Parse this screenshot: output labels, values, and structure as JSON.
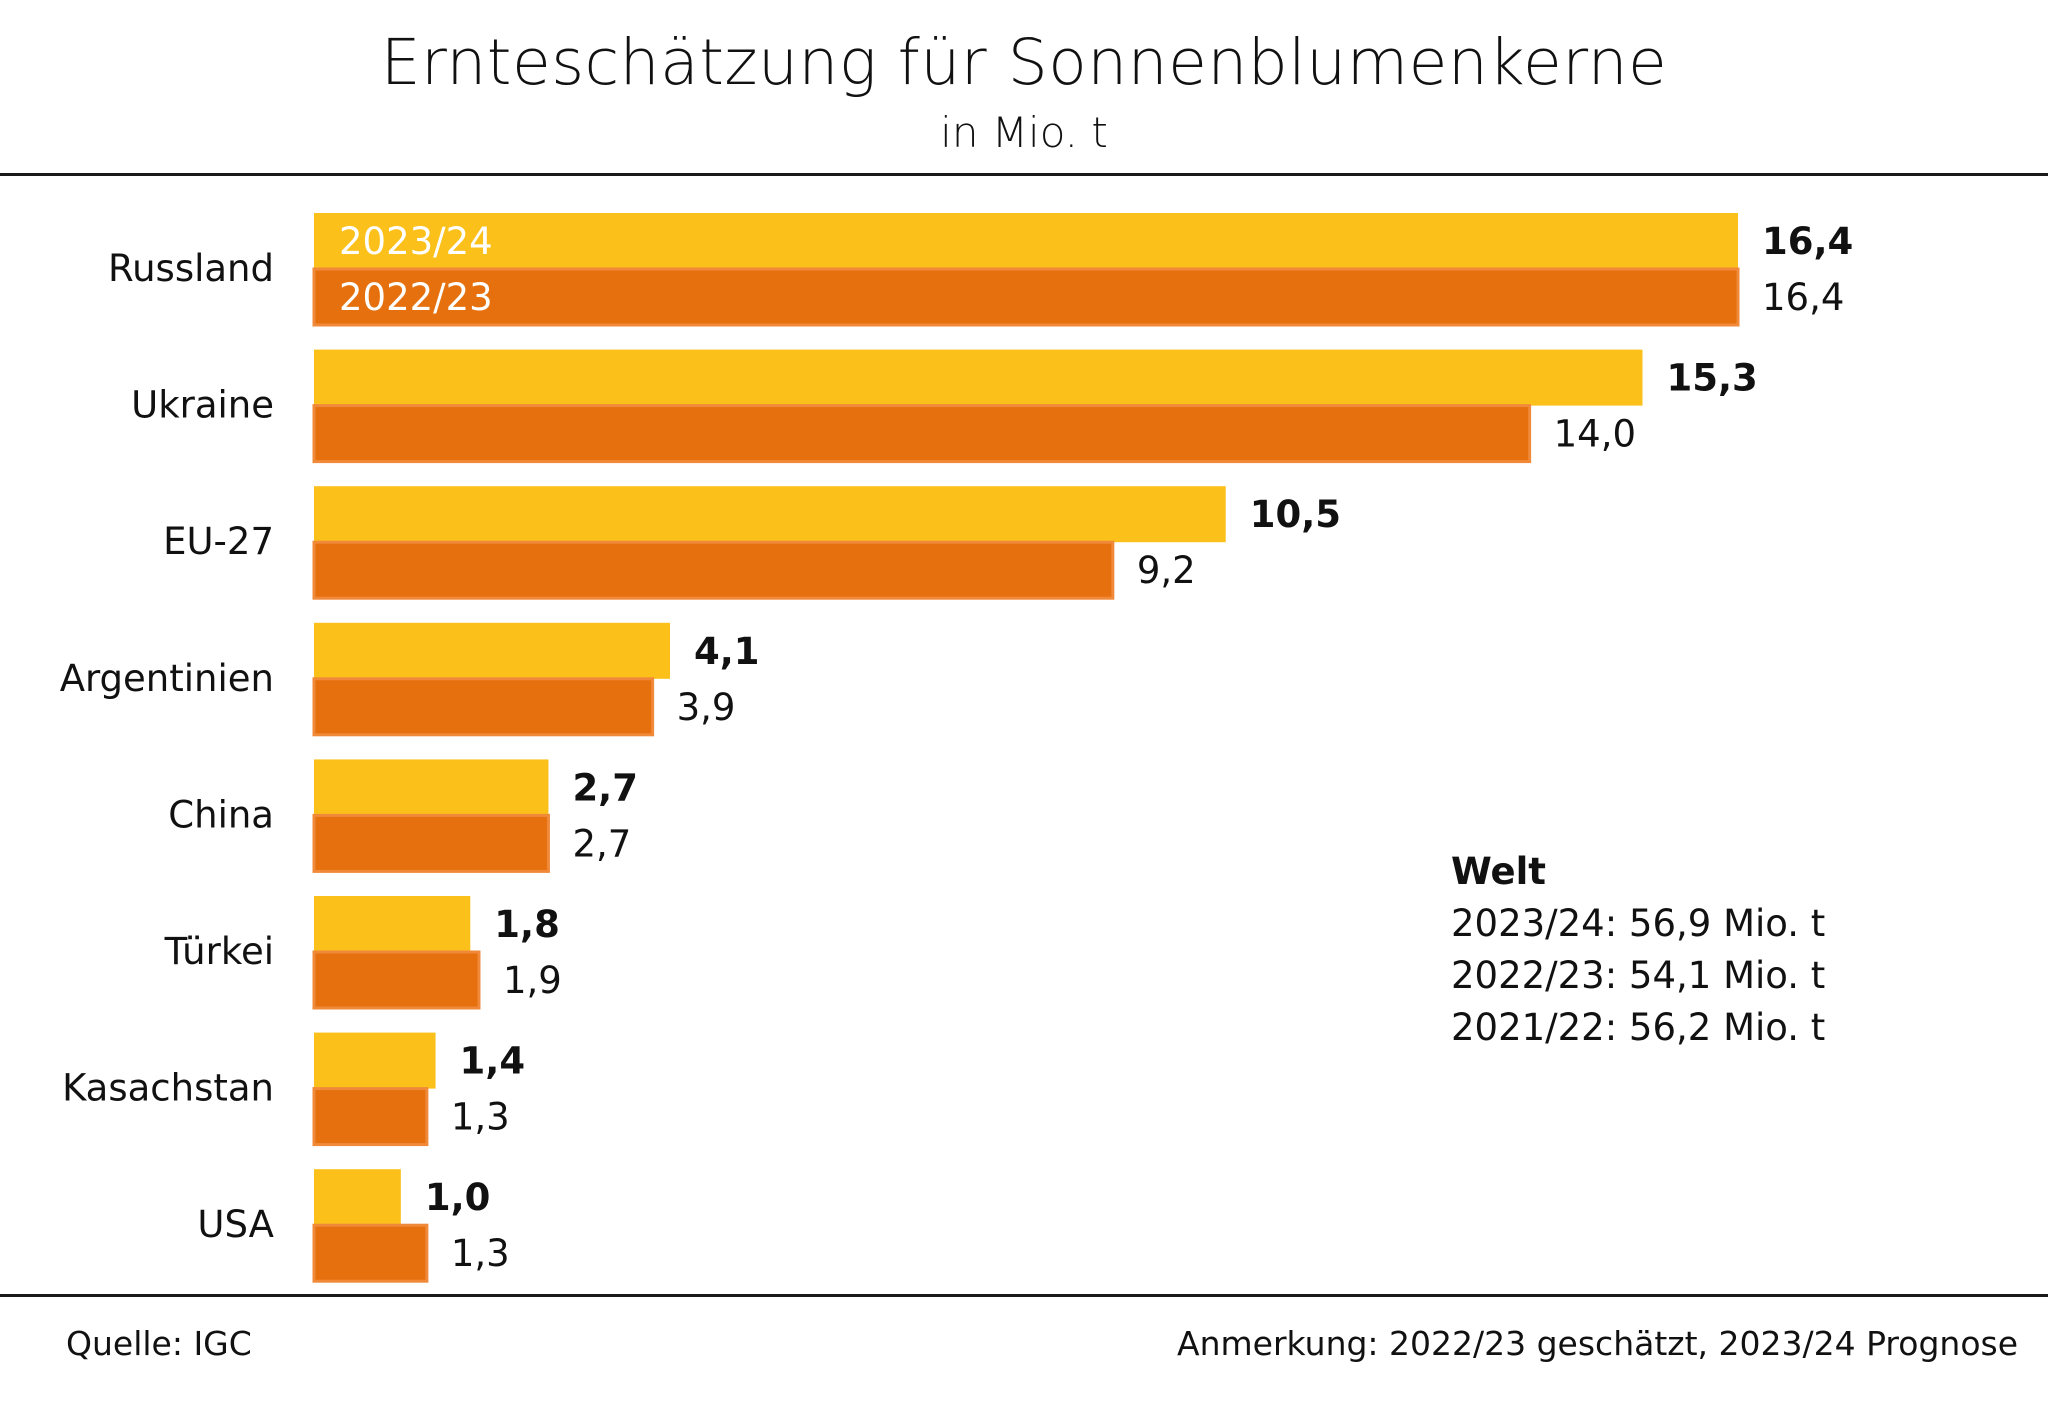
{
  "chart_data": {
    "type": "bar",
    "orientation": "horizontal",
    "title": "Ernteschätzung für Sonnenblumenkerne",
    "subtitle": "in Mio. t",
    "categories": [
      "Russland",
      "Ukraine",
      "EU-27",
      "Argentinien",
      "China",
      "Türkei",
      "Kasachstan",
      "USA"
    ],
    "series": [
      {
        "name": "2023/24",
        "color": "#FBC01A",
        "values": [
          16.4,
          15.3,
          10.5,
          4.1,
          2.7,
          1.8,
          1.4,
          1.0
        ],
        "labels": [
          "16,4",
          "15,3",
          "10,5",
          "4,1",
          "2,7",
          "1,8",
          "1,4",
          "1,0"
        ]
      },
      {
        "name": "2022/23",
        "color": "#E5700D",
        "values": [
          16.4,
          14.0,
          9.2,
          3.9,
          2.7,
          1.9,
          1.3,
          1.3
        ],
        "labels": [
          "16,4",
          "14,0",
          "9,2",
          "3,9",
          "2,7",
          "1,9",
          "1,3",
          "1,3"
        ]
      }
    ],
    "xlim": [
      0,
      16.4
    ],
    "grid": false,
    "legend": "inside-first-bars"
  },
  "world": {
    "title": "Welt",
    "lines": [
      "2023/24: 56,9 Mio. t",
      "2022/23: 54,1 Mio. t",
      "2021/22: 56,2 Mio. t"
    ]
  },
  "footer": {
    "source": "Quelle:  IGC",
    "note": "Anmerkung: 2022/23 geschätzt, 2023/24 Prognose"
  }
}
